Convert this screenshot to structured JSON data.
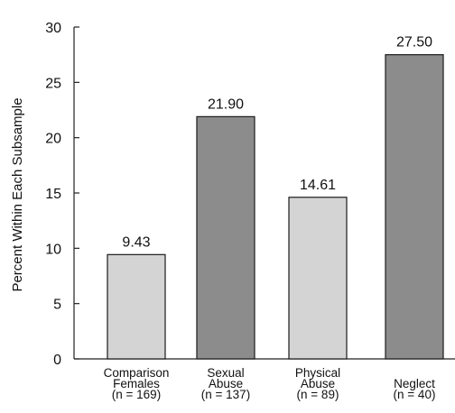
{
  "chart_data": {
    "type": "bar",
    "ylabel": "Percent Within Each Subsample",
    "ylim": [
      0,
      30
    ],
    "yticks": [
      0,
      5,
      10,
      15,
      20,
      25,
      30
    ],
    "grid": false,
    "categories": [
      {
        "lines": [
          "Comparison",
          "Females",
          "(n = 169)"
        ],
        "value": 9.43,
        "label": "9.43",
        "color": "#d4d4d4"
      },
      {
        "lines": [
          "Sexual",
          "Abuse",
          "(n = 137)"
        ],
        "value": 21.9,
        "label": "21.90",
        "color": "#8c8c8c"
      },
      {
        "lines": [
          "Physical",
          "Abuse",
          "(n = 89)"
        ],
        "value": 14.61,
        "label": "14.61",
        "color": "#d4d4d4"
      },
      {
        "lines": [
          "Neglect",
          "(n = 40)"
        ],
        "value": 27.5,
        "label": "27.50",
        "color": "#8c8c8c"
      }
    ]
  }
}
